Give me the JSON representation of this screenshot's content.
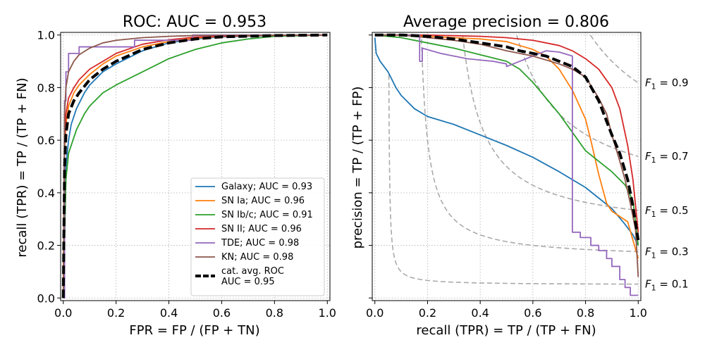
{
  "chart_data": [
    {
      "type": "line",
      "title": "ROC: AUC = 0.953",
      "xlabel": "FPR = FP / (FP + TN)",
      "ylabel": "recall (TPR) = TP / (TP + FN)",
      "xlim": [
        -0.01,
        1.01
      ],
      "ylim": [
        -0.01,
        1.01
      ],
      "xticks": [
        "0.0",
        "0.2",
        "0.4",
        "0.6",
        "0.8",
        "1.0"
      ],
      "yticks": [
        "0.0",
        "0.2",
        "0.4",
        "0.6",
        "0.8",
        "1.0"
      ],
      "grid": true,
      "legend_position": "lower-right",
      "series": [
        {
          "name": "Galaxy; AUC = 0.93",
          "color": "#1f77b4",
          "style": "solid",
          "x": [
            0,
            0.005,
            0.01,
            0.02,
            0.03,
            0.05,
            0.08,
            0.1,
            0.15,
            0.2,
            0.3,
            0.4,
            0.5,
            0.6,
            0.8,
            1.0
          ],
          "y": [
            0,
            0.35,
            0.5,
            0.6,
            0.66,
            0.72,
            0.78,
            0.81,
            0.86,
            0.89,
            0.94,
            0.97,
            0.985,
            0.993,
            0.998,
            1.0
          ]
        },
        {
          "name": "SN Ia; AUC = 0.96",
          "color": "#ff7f0e",
          "style": "solid",
          "x": [
            0,
            0.005,
            0.01,
            0.02,
            0.04,
            0.06,
            0.1,
            0.15,
            0.2,
            0.3,
            0.4,
            0.5,
            0.6,
            0.8,
            1.0
          ],
          "y": [
            0,
            0.55,
            0.66,
            0.73,
            0.78,
            0.81,
            0.85,
            0.89,
            0.92,
            0.955,
            0.975,
            0.988,
            0.995,
            0.999,
            1.0
          ]
        },
        {
          "name": "SN Ib/c; AUC = 0.91",
          "color": "#2ca02c",
          "style": "solid",
          "x": [
            0,
            0.01,
            0.02,
            0.05,
            0.08,
            0.1,
            0.15,
            0.2,
            0.3,
            0.4,
            0.5,
            0.6,
            0.7,
            0.8,
            1.0
          ],
          "y": [
            0,
            0.45,
            0.55,
            0.64,
            0.7,
            0.73,
            0.78,
            0.81,
            0.86,
            0.91,
            0.945,
            0.97,
            0.985,
            0.995,
            1.0
          ]
        },
        {
          "name": "SN II; AUC = 0.96",
          "color": "#d62728",
          "style": "solid",
          "x": [
            0,
            0.005,
            0.01,
            0.02,
            0.04,
            0.06,
            0.1,
            0.15,
            0.2,
            0.3,
            0.4,
            0.5,
            0.7,
            1.0
          ],
          "y": [
            0,
            0.6,
            0.7,
            0.76,
            0.8,
            0.83,
            0.87,
            0.9,
            0.93,
            0.965,
            0.982,
            0.992,
            0.998,
            1.0
          ]
        },
        {
          "name": "TDE; AUC = 0.98",
          "color": "#9467bd",
          "style": "steps",
          "x": [
            0,
            0.005,
            0.005,
            0.01,
            0.01,
            0.02,
            0.02,
            0.06,
            0.06,
            0.27,
            0.27,
            0.49,
            0.49,
            1.0
          ],
          "y": [
            0,
            0,
            0.75,
            0.75,
            0.86,
            0.86,
            0.93,
            0.93,
            0.955,
            0.955,
            0.98,
            0.98,
            1.0,
            1.0
          ]
        },
        {
          "name": "KN; AUC = 0.98",
          "color": "#8c564b",
          "style": "solid",
          "x": [
            0,
            0.005,
            0.01,
            0.02,
            0.04,
            0.06,
            0.1,
            0.15,
            0.2,
            0.3,
            0.4,
            0.5,
            1.0
          ],
          "y": [
            0,
            0.7,
            0.8,
            0.86,
            0.9,
            0.925,
            0.95,
            0.97,
            0.98,
            0.99,
            0.995,
            0.998,
            1.0
          ]
        },
        {
          "name": "cat. avg. ROC\nAUC = 0.95",
          "color": "#000000",
          "style": "dashed",
          "x": [
            0,
            0.005,
            0.01,
            0.02,
            0.04,
            0.06,
            0.1,
            0.15,
            0.2,
            0.3,
            0.4,
            0.5,
            0.6,
            0.8,
            1.0
          ],
          "y": [
            0,
            0.5,
            0.62,
            0.7,
            0.75,
            0.78,
            0.83,
            0.87,
            0.9,
            0.945,
            0.97,
            0.985,
            0.993,
            0.998,
            1.0
          ]
        }
      ]
    },
    {
      "type": "line",
      "title": "Average precision = 0.806",
      "xlabel": "recall (TPR) = TP / (TP + FN)",
      "ylabel": "precision = TP / (TP + FP)",
      "xlim": [
        -0.01,
        1.01
      ],
      "ylim": [
        -0.01,
        1.01
      ],
      "xticks": [
        "0.0",
        "0.2",
        "0.4",
        "0.6",
        "0.8",
        "1.0"
      ],
      "grid": true,
      "iso_f1_labels": [
        "F",
        "1",
        " = 0.1",
        " = 0.3",
        " = 0.5",
        " = 0.7",
        " = 0.9"
      ],
      "iso_f1_values": [
        0.1,
        0.3,
        0.5,
        0.7,
        0.9
      ],
      "iso_f1_color": "#aaaaaa",
      "series": [
        {
          "name": "Galaxy",
          "color": "#1f77b4",
          "style": "solid",
          "x": [
            0.0,
            0.005,
            0.02,
            0.05,
            0.08,
            0.1,
            0.15,
            0.2,
            0.25,
            0.3,
            0.4,
            0.5,
            0.6,
            0.7,
            0.8,
            0.9,
            0.95,
            0.98,
            1.0
          ],
          "y": [
            0.99,
            0.93,
            0.9,
            0.86,
            0.8,
            0.77,
            0.72,
            0.69,
            0.675,
            0.66,
            0.62,
            0.58,
            0.535,
            0.48,
            0.42,
            0.34,
            0.28,
            0.24,
            0.2
          ]
        },
        {
          "name": "SN Ia",
          "color": "#ff7f0e",
          "style": "solid",
          "x": [
            0,
            0.1,
            0.2,
            0.3,
            0.4,
            0.5,
            0.55,
            0.6,
            0.65,
            0.7,
            0.75,
            0.8,
            0.82,
            0.85,
            0.88,
            0.9,
            0.93,
            0.96,
            0.98,
            1.0
          ],
          "y": [
            1.0,
            1.0,
            0.995,
            0.99,
            0.985,
            0.975,
            0.96,
            0.945,
            0.92,
            0.87,
            0.79,
            0.68,
            0.6,
            0.47,
            0.36,
            0.33,
            0.31,
            0.29,
            0.22,
            0.15
          ]
        },
        {
          "name": "SN Ib/c",
          "color": "#2ca02c",
          "style": "solid",
          "x": [
            0,
            0.1,
            0.2,
            0.3,
            0.4,
            0.5,
            0.55,
            0.6,
            0.65,
            0.7,
            0.75,
            0.8,
            0.85,
            0.9,
            0.95,
            0.98,
            1.0
          ],
          "y": [
            1.0,
            0.99,
            0.97,
            0.95,
            0.925,
            0.9,
            0.87,
            0.82,
            0.76,
            0.7,
            0.63,
            0.56,
            0.52,
            0.48,
            0.43,
            0.37,
            0.2
          ]
        },
        {
          "name": "SN II",
          "color": "#d62728",
          "style": "solid",
          "x": [
            0,
            0.2,
            0.4,
            0.5,
            0.6,
            0.7,
            0.75,
            0.8,
            0.85,
            0.9,
            0.93,
            0.96,
            0.98,
            1.0
          ],
          "y": [
            1.0,
            1.0,
            0.995,
            0.99,
            0.98,
            0.96,
            0.94,
            0.91,
            0.87,
            0.8,
            0.72,
            0.58,
            0.45,
            0.25
          ]
        },
        {
          "name": "TDE",
          "color": "#9467bd",
          "style": "steps",
          "x": [
            0,
            0.17,
            0.17,
            0.18,
            0.18,
            0.25,
            0.3,
            0.35,
            0.45,
            0.5,
            0.5,
            0.55,
            0.6,
            0.65,
            0.7,
            0.75,
            0.75,
            0.78,
            0.78,
            0.82,
            0.82,
            0.85,
            0.85,
            0.88,
            0.88,
            0.9,
            0.9,
            0.93,
            0.93,
            0.95,
            0.95,
            0.97,
            0.97,
            1.0
          ],
          "y": [
            1.0,
            1.0,
            0.9,
            0.9,
            0.95,
            0.93,
            0.92,
            0.91,
            0.9,
            0.89,
            0.88,
            0.9,
            0.92,
            0.94,
            0.935,
            0.92,
            0.25,
            0.25,
            0.23,
            0.23,
            0.2,
            0.2,
            0.18,
            0.18,
            0.15,
            0.15,
            0.12,
            0.12,
            0.07,
            0.07,
            0.04,
            0.04,
            0.01,
            0.01
          ]
        },
        {
          "name": "KN",
          "color": "#8c564b",
          "style": "solid",
          "x": [
            0,
            0.1,
            0.2,
            0.3,
            0.4,
            0.5,
            0.6,
            0.7,
            0.75,
            0.8,
            0.85,
            0.88,
            0.9,
            0.93,
            0.95,
            0.97,
            0.99,
            1.0
          ],
          "y": [
            1.0,
            1.0,
            0.99,
            0.98,
            0.965,
            0.94,
            0.92,
            0.89,
            0.87,
            0.84,
            0.76,
            0.7,
            0.62,
            0.52,
            0.45,
            0.36,
            0.26,
            0.08
          ]
        },
        {
          "name": "average",
          "color": "#000000",
          "style": "dashed",
          "x": [
            0,
            0.1,
            0.2,
            0.3,
            0.4,
            0.5,
            0.55,
            0.6,
            0.65,
            0.7,
            0.75,
            0.8,
            0.85,
            0.9,
            0.93,
            0.96,
            0.98,
            1.0
          ],
          "y": [
            1.0,
            1.0,
            0.995,
            0.985,
            0.97,
            0.955,
            0.94,
            0.93,
            0.92,
            0.9,
            0.88,
            0.84,
            0.75,
            0.62,
            0.55,
            0.45,
            0.35,
            0.22
          ]
        }
      ]
    }
  ]
}
